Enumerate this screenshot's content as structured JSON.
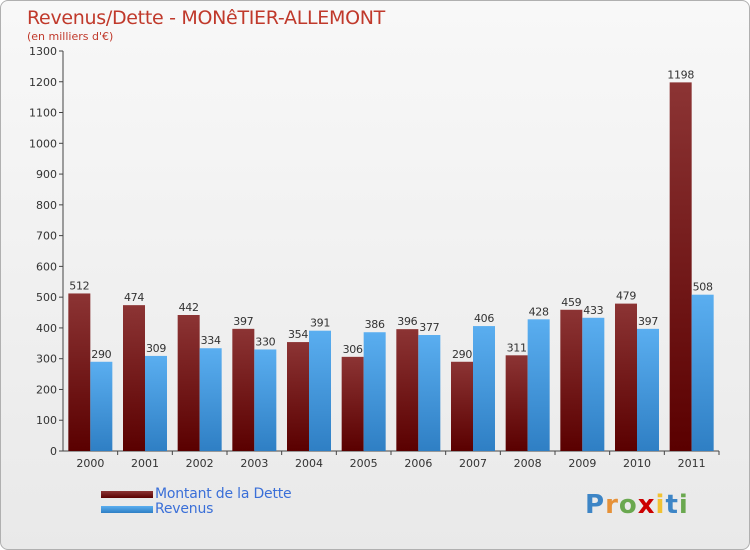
{
  "colors": {
    "title": "#c0392b",
    "debt_top": "#8c3434",
    "debt_bottom": "#5a0000",
    "revenue_top": "#5aaef0",
    "revenue_bottom": "#2f7fc4",
    "legend_text": "#3a6fd8",
    "axis": "#444444",
    "grid": "#d8d8d8"
  },
  "logo": {
    "letters": [
      "P",
      "r",
      "o",
      "x",
      "i",
      "t",
      "i"
    ],
    "letter_colors": [
      "#3d85c6",
      "#e69138",
      "#6aa84f",
      "#cc0000",
      "#f1c232",
      "#3d85c6",
      "#6aa84f"
    ]
  },
  "chart_data": {
    "type": "bar",
    "title": "Revenus/Dette - MONêTIER-ALLEMONT",
    "subtitle": "(en milliers d'€)",
    "xlabel": "",
    "ylabel": "",
    "ylim": [
      0,
      1300
    ],
    "yticks": [
      0,
      100,
      200,
      300,
      400,
      500,
      600,
      700,
      800,
      900,
      1000,
      1100,
      1200,
      1300
    ],
    "grid": false,
    "legend_position": "bottom-left",
    "categories": [
      "2000",
      "2001",
      "2002",
      "2003",
      "2004",
      "2005",
      "2006",
      "2007",
      "2008",
      "2009",
      "2010",
      "2011"
    ],
    "series": [
      {
        "name": "Montant de la Dette",
        "values": [
          512,
          474,
          442,
          397,
          354,
          306,
          396,
          290,
          311,
          459,
          479,
          1198
        ]
      },
      {
        "name": "Revenus",
        "values": [
          290,
          309,
          334,
          330,
          391,
          386,
          377,
          406,
          428,
          433,
          397,
          508
        ]
      }
    ]
  }
}
